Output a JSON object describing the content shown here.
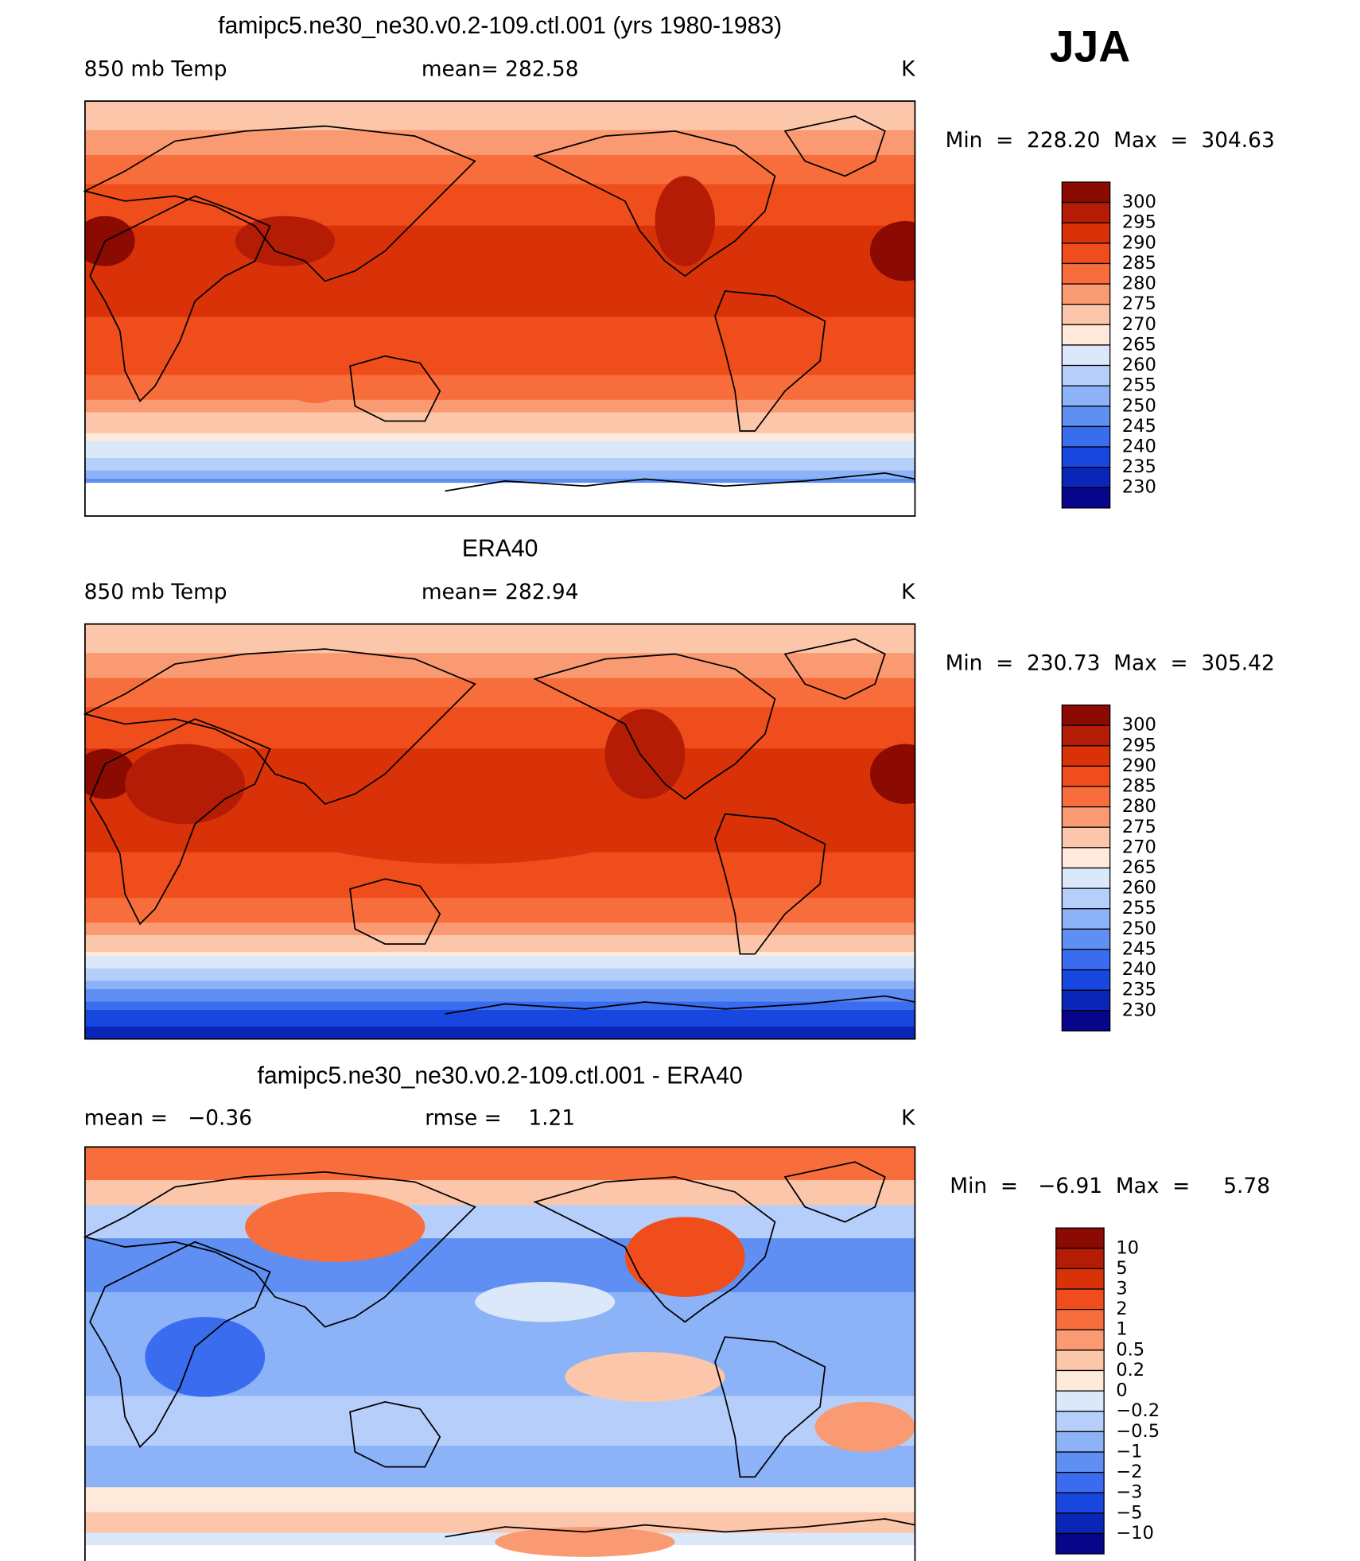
{
  "header": {
    "season": "JJA"
  },
  "panels": [
    {
      "title": "famipc5.ne30_ne30.v0.2-109.ctl.001 (yrs 1980-1983)",
      "left_label": "850 mb Temp",
      "center_label": "mean= 282.58",
      "units": "K",
      "range": "Min  =  228.20  Max  =  304.63",
      "colorbar": {
        "labels": [
          "300",
          "295",
          "290",
          "285",
          "280",
          "275",
          "270",
          "265",
          "260",
          "255",
          "250",
          "245",
          "240",
          "235",
          "230"
        ],
        "colors": [
          "#8b0a02",
          "#b51c06",
          "#d93208",
          "#ef4d1c",
          "#f76e3c",
          "#fa9a72",
          "#fcc6aa",
          "#fee9da",
          "#dbe8fa",
          "#b6cffa",
          "#8cb2f8",
          "#5f8ff3",
          "#3a6cef",
          "#1847e0",
          "#0a26b8",
          "#07068a"
        ]
      }
    },
    {
      "title": "ERA40",
      "left_label": "850 mb Temp",
      "center_label": "mean= 282.94",
      "units": "K",
      "range": "Min  =  230.73  Max  =  305.42",
      "colorbar": {
        "labels": [
          "300",
          "295",
          "290",
          "285",
          "280",
          "275",
          "270",
          "265",
          "260",
          "255",
          "250",
          "245",
          "240",
          "235",
          "230"
        ],
        "colors": [
          "#8b0a02",
          "#b51c06",
          "#d93208",
          "#ef4d1c",
          "#f76e3c",
          "#fa9a72",
          "#fcc6aa",
          "#fee9da",
          "#dbe8fa",
          "#b6cffa",
          "#8cb2f8",
          "#5f8ff3",
          "#3a6cef",
          "#1847e0",
          "#0a26b8",
          "#07068a"
        ]
      }
    },
    {
      "title": "famipc5.ne30_ne30.v0.2-109.ctl.001 - ERA40",
      "left_label": "mean =   −0.36",
      "center_label": "rmse =    1.21",
      "units": "K",
      "range": "Min  =   −6.91  Max  =     5.78",
      "colorbar": {
        "labels": [
          "10",
          "5",
          "3",
          "2",
          "1",
          "0.5",
          "0.2",
          "0",
          "−0.2",
          "−0.5",
          "−1",
          "−2",
          "−3",
          "−5",
          "−10"
        ],
        "colors": [
          "#8b0a02",
          "#b51c06",
          "#d93208",
          "#ef4d1c",
          "#f76e3c",
          "#fa9a72",
          "#fcc6aa",
          "#fee9da",
          "#dbe8fa",
          "#b6cffa",
          "#8cb2f8",
          "#5f8ff3",
          "#3a6cef",
          "#1847e0",
          "#0a26b8",
          "#07068a"
        ]
      }
    }
  ]
}
